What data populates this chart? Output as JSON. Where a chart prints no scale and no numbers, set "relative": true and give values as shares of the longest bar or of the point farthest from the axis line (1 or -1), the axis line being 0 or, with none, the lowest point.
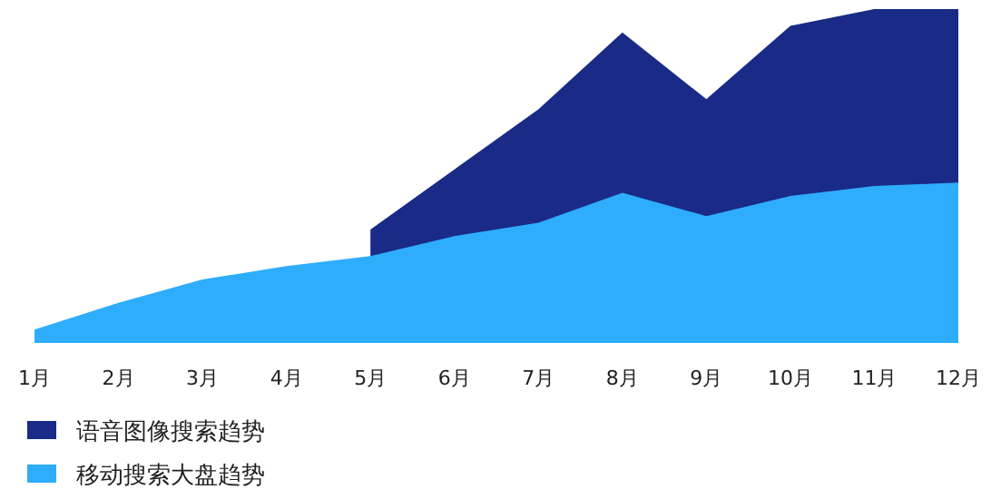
{
  "chart_data": {
    "type": "area",
    "relative": true,
    "legend": "bottom left",
    "grid": false,
    "categories": [
      "1月",
      "2月",
      "3月",
      "4月",
      "5月",
      "6月",
      "7月",
      "8月",
      "9月",
      "10月",
      "11月",
      "12月"
    ],
    "series": [
      {
        "name": "语音图像搜索趋势",
        "color": "#192b86",
        "values": [
          null,
          null,
          null,
          null,
          0.34,
          0.52,
          0.7,
          0.93,
          0.73,
          0.95,
          1,
          1
        ]
      },
      {
        "name": "移动搜索大盘趋势",
        "color": "#2eadfd",
        "values": [
          0.04,
          0.12,
          0.19,
          0.23,
          0.26,
          0.32,
          0.36,
          0.45,
          0.38,
          0.44,
          0.47,
          0.48
        ]
      }
    ]
  }
}
